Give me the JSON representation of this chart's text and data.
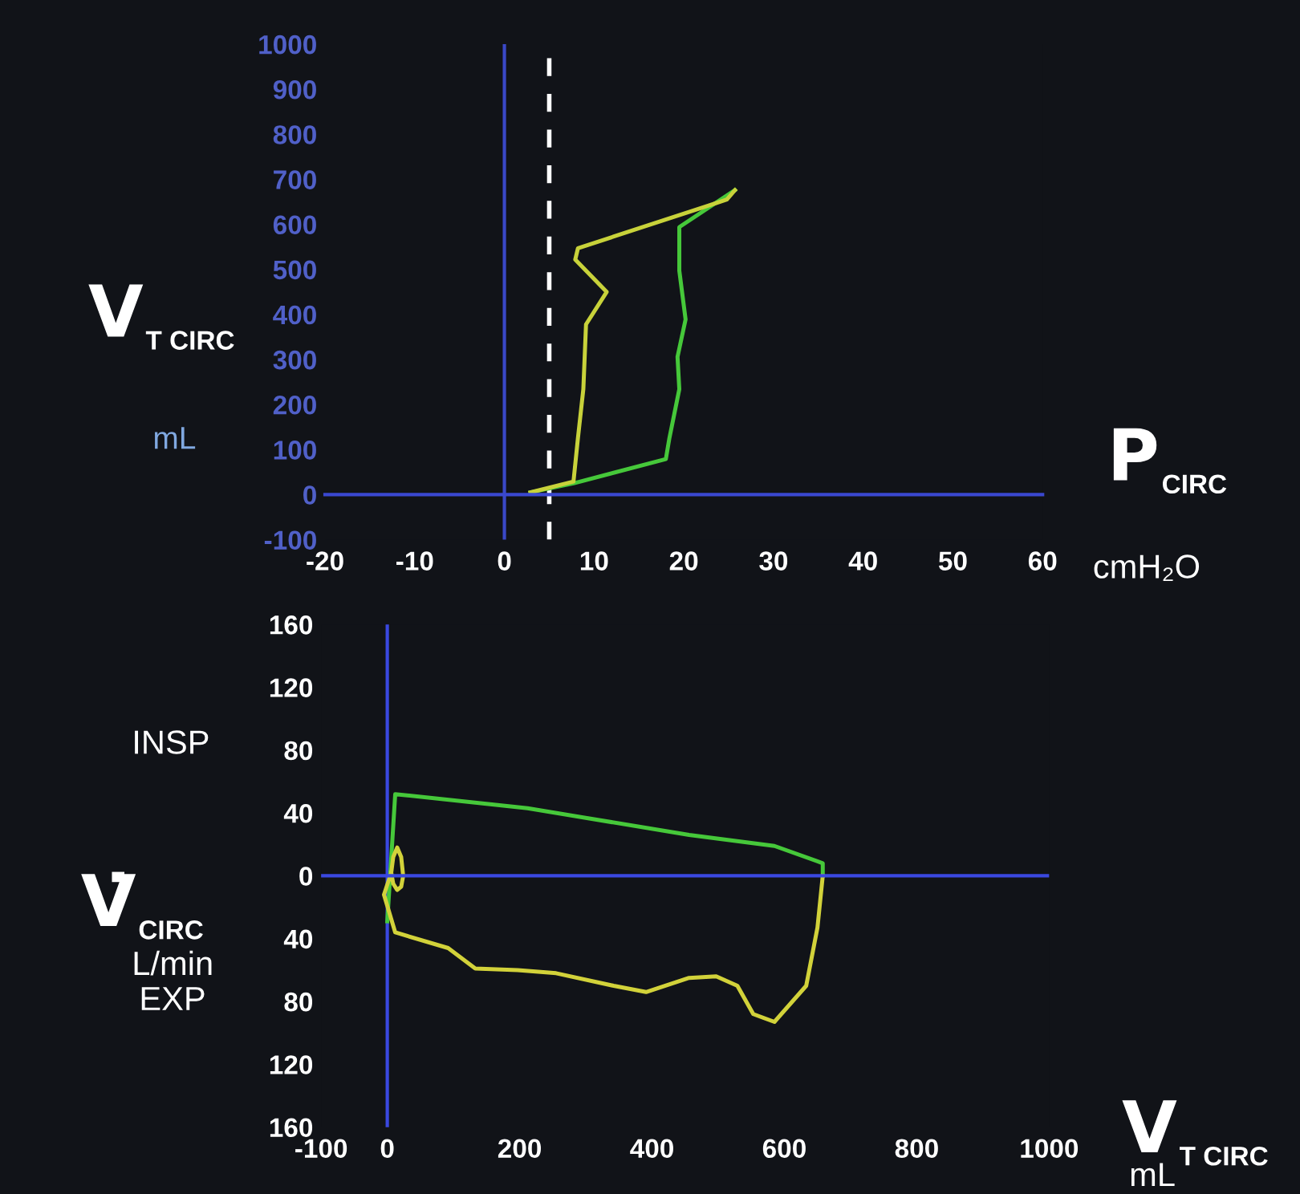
{
  "chart_data": [
    {
      "type": "line",
      "xlabel": "P$_{CIRC}$",
      "ylabel": "V$_{T CIRC}$",
      "annotations": [
        "mL",
        "cmH₂O"
      ],
      "xlim": [
        -20,
        60
      ],
      "xticks": [
        -20,
        -10,
        0,
        10,
        20,
        30,
        40,
        50,
        60
      ],
      "ylim": [
        -100,
        1000
      ],
      "yticks": [
        -100,
        0,
        100,
        200,
        300,
        400,
        500,
        600,
        700,
        800,
        900,
        1000
      ],
      "grid": false,
      "legend": false,
      "ref_lines": [
        {
          "axis": "x",
          "value": 0,
          "color": "#3a48c8",
          "line_style": "solid"
        },
        {
          "axis": "x",
          "value": 5,
          "color": "#ffffff",
          "line_style": "dashed"
        }
      ],
      "series": [
        {
          "color": "#46c83a",
          "x": [
            2.9,
            7.7,
            18,
            18.4,
            19.5,
            19.3,
            20.2,
            19.5,
            19.5,
            25.7
          ],
          "values": [
            5,
            25,
            79,
            126,
            234,
            306,
            389,
            497,
            594,
            676
          ]
        },
        {
          "color": "#c8d23a",
          "x": [
            25.7,
            24.8,
            8.2,
            7.9,
            11.4,
            9.1,
            8.8,
            8.2,
            7.7,
            2.9
          ],
          "values": [
            676,
            655,
            547,
            522,
            450,
            378,
            234,
            126,
            29,
            5
          ]
        }
      ]
    },
    {
      "type": "line",
      "xlabel": "V$_{T CIRC}$",
      "ylabel": "V̇$_{CIRC}$",
      "annotations": [
        "L/min",
        "INSP",
        "EXP",
        "mL"
      ],
      "xlim": [
        -100,
        1000
      ],
      "xticks": [
        -100,
        0,
        200,
        400,
        600,
        800,
        1000
      ],
      "ylim": [
        -160,
        160
      ],
      "yticks": [
        {
          "value": -160,
          "label": "160"
        },
        {
          "value": -120,
          "label": "120"
        },
        {
          "value": -80,
          "label": "80"
        },
        {
          "value": -40,
          "label": "40"
        },
        0,
        40,
        80,
        120,
        160
      ],
      "grid": false,
      "legend": false,
      "ref_lines": [
        {
          "axis": "x",
          "value": 0,
          "color": "#3a48e0",
          "line_style": "solid"
        },
        {
          "axis": "y",
          "value": 0,
          "color": "#3a48e0",
          "line_style": "solid"
        }
      ],
      "series": [
        {
          "color": "#46c83a",
          "x": [
            0,
            12,
            212,
            456,
            585,
            658,
            658
          ],
          "values": [
            -29,
            52,
            43,
            26,
            19,
            8,
            0
          ]
        },
        {
          "color": "#d2d23a",
          "x": [
            658,
            650,
            633,
            585,
            553,
            529,
            497,
            456,
            391,
            342,
            255,
            197,
            133,
            92,
            12,
            -5,
            6,
            9,
            15,
            21,
            24,
            21,
            15,
            9,
            6
          ],
          "values": [
            0,
            -33,
            -70,
            -93,
            -88,
            -70,
            -64,
            -65,
            -74,
            -70,
            -62,
            -60,
            -59,
            -46,
            -36,
            -12,
            2,
            12,
            18,
            12,
            0,
            -7,
            -9,
            -5,
            2
          ]
        }
      ]
    }
  ]
}
